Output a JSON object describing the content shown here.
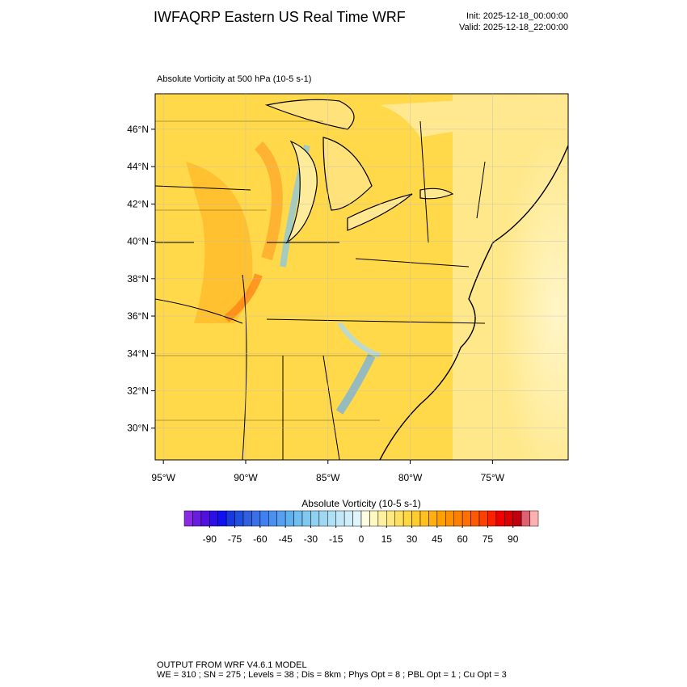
{
  "chart_data": {
    "type": "map",
    "title": "IWFAQRP Eastern US Real Time WRF",
    "init": "Init: 2025-12-18_00:00:00",
    "valid": "Valid: 2025-12-18_22:00:00",
    "subtitle": "Absolute Vorticity at 500 hPa   (10-5 s-1)",
    "ylim": [
      28.3,
      47.9
    ],
    "yticks": [
      {
        "value": 30,
        "label": "30°N"
      },
      {
        "value": 32,
        "label": "32°N"
      },
      {
        "value": 34,
        "label": "34°N"
      },
      {
        "value": 36,
        "label": "36°N"
      },
      {
        "value": 38,
        "label": "38°N"
      },
      {
        "value": 40,
        "label": "40°N"
      },
      {
        "value": 42,
        "label": "42°N"
      },
      {
        "value": 44,
        "label": "44°N"
      },
      {
        "value": 46,
        "label": "46°N"
      }
    ],
    "xlim": [
      -95.5,
      -70.4
    ],
    "xticks": [
      {
        "value": -95,
        "label": "95°W"
      },
      {
        "value": -90,
        "label": "90°W"
      },
      {
        "value": -85,
        "label": "85°W"
      },
      {
        "value": -80,
        "label": "80°W"
      },
      {
        "value": -75,
        "label": "75°W"
      }
    ],
    "colorbar": {
      "title": "Absolute Vorticity  (10-5 s-1)",
      "lim": [
        -105,
        105
      ],
      "ticks": [
        -90,
        -75,
        -60,
        -45,
        -30,
        -15,
        0,
        15,
        30,
        45,
        60,
        75,
        90
      ],
      "colors": [
        "#8a2be2",
        "#6a1be0",
        "#5010e0",
        "#2a10e6",
        "#1010f0",
        "#1838e0",
        "#2050e0",
        "#3060e0",
        "#3a70e8",
        "#4080f0",
        "#4a90f0",
        "#55a0f0",
        "#60b0f0",
        "#70bff0",
        "#80c8f0",
        "#90d0f0",
        "#a0d8f4",
        "#b0e0f4",
        "#c0e8f8",
        "#d0eefa",
        "#e0f4fc",
        "#fffde0",
        "#fff8c0",
        "#fff0a0",
        "#ffe880",
        "#ffe060",
        "#ffd840",
        "#ffcc30",
        "#ffc020",
        "#ffb010",
        "#ffa000",
        "#ff9000",
        "#ff8000",
        "#ff7000",
        "#ff5a00",
        "#ff4000",
        "#ff2000",
        "#f00000",
        "#d80000",
        "#c00010",
        "#e06070",
        "#ffb0b0"
      ]
    },
    "footer": [
      "OUTPUT FROM WRF V4.6.1 MODEL",
      "WE = 310 ; SN = 275 ; Levels = 38 ; Dis = 8km ; Phys Opt = 8 ; PBL Opt = 1 ; Cu Opt = 3"
    ]
  }
}
